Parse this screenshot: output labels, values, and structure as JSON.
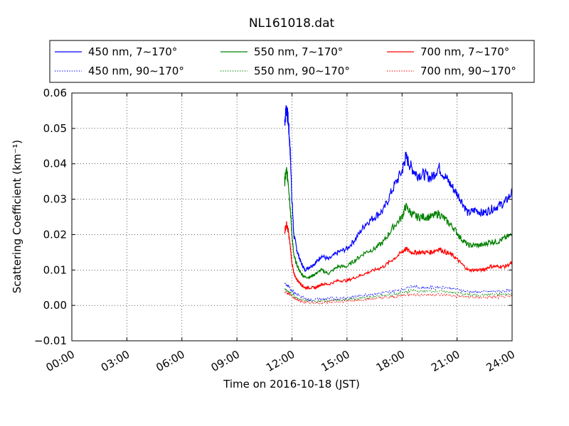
{
  "chart_data": {
    "type": "line",
    "title": "NL161018.dat",
    "xlabel": "Time on 2016-10-18 (JST)",
    "ylabel": "Scattering Coefficient (km⁻¹)",
    "xlim": [
      0,
      24
    ],
    "ylim": [
      -0.01,
      0.06
    ],
    "x_ticks": [
      0,
      3,
      6,
      9,
      12,
      15,
      18,
      21,
      24
    ],
    "x_tick_labels": [
      "00:00",
      "03:00",
      "06:00",
      "09:00",
      "12:00",
      "15:00",
      "18:00",
      "21:00",
      "24:00"
    ],
    "y_ticks": [
      -0.01,
      0.0,
      0.01,
      0.02,
      0.03,
      0.04,
      0.05,
      0.06
    ],
    "y_tick_labels": [
      "−0.01",
      "0.00",
      "0.01",
      "0.02",
      "0.03",
      "0.04",
      "0.05",
      "0.06"
    ],
    "grid": true,
    "legend_position": "top",
    "series": [
      {
        "name": "450 nm, 7∼170°",
        "color": "#0000ff",
        "style": "solid",
        "x": [
          11.6,
          11.7,
          11.8,
          11.9,
          12.0,
          12.1,
          12.3,
          12.5,
          12.7,
          13.0,
          13.3,
          13.6,
          14.0,
          14.5,
          15.0,
          15.5,
          16.0,
          16.5,
          17.0,
          17.5,
          18.0,
          18.2,
          18.5,
          18.8,
          19.2,
          19.6,
          20.0,
          20.4,
          20.8,
          21.2,
          21.6,
          22.0,
          22.4,
          22.8,
          23.2,
          23.6,
          24.0
        ],
        "y": [
          0.052,
          0.056,
          0.052,
          0.044,
          0.03,
          0.02,
          0.015,
          0.012,
          0.01,
          0.011,
          0.012,
          0.014,
          0.013,
          0.015,
          0.016,
          0.019,
          0.023,
          0.025,
          0.027,
          0.033,
          0.038,
          0.042,
          0.039,
          0.037,
          0.037,
          0.036,
          0.039,
          0.036,
          0.033,
          0.03,
          0.026,
          0.027,
          0.026,
          0.027,
          0.028,
          0.029,
          0.032
        ]
      },
      {
        "name": "550 nm, 7∼170°",
        "color": "#008000",
        "style": "solid",
        "x": [
          11.6,
          11.7,
          11.8,
          11.9,
          12.0,
          12.1,
          12.3,
          12.5,
          12.7,
          13.0,
          13.3,
          13.6,
          14.0,
          14.5,
          15.0,
          15.5,
          16.0,
          16.5,
          17.0,
          17.5,
          18.0,
          18.2,
          18.5,
          18.8,
          19.2,
          19.6,
          20.0,
          20.4,
          20.8,
          21.2,
          21.6,
          22.0,
          22.4,
          22.8,
          23.2,
          23.6,
          24.0
        ],
        "y": [
          0.035,
          0.038,
          0.035,
          0.028,
          0.02,
          0.014,
          0.011,
          0.009,
          0.008,
          0.008,
          0.009,
          0.01,
          0.009,
          0.011,
          0.011,
          0.013,
          0.015,
          0.016,
          0.018,
          0.022,
          0.025,
          0.028,
          0.026,
          0.025,
          0.025,
          0.025,
          0.026,
          0.024,
          0.022,
          0.019,
          0.017,
          0.017,
          0.017,
          0.018,
          0.018,
          0.019,
          0.02
        ]
      },
      {
        "name": "700 nm, 7∼170°",
        "color": "#ff0000",
        "style": "solid",
        "x": [
          11.6,
          11.7,
          11.8,
          11.9,
          12.0,
          12.1,
          12.3,
          12.5,
          12.7,
          13.0,
          13.3,
          13.6,
          14.0,
          14.5,
          15.0,
          15.5,
          16.0,
          16.5,
          17.0,
          17.5,
          18.0,
          18.2,
          18.5,
          18.8,
          19.2,
          19.6,
          20.0,
          20.4,
          20.8,
          21.2,
          21.6,
          22.0,
          22.4,
          22.8,
          23.2,
          23.6,
          24.0
        ],
        "y": [
          0.021,
          0.023,
          0.021,
          0.017,
          0.012,
          0.009,
          0.007,
          0.006,
          0.005,
          0.005,
          0.005,
          0.006,
          0.006,
          0.007,
          0.007,
          0.008,
          0.009,
          0.01,
          0.011,
          0.013,
          0.015,
          0.016,
          0.015,
          0.015,
          0.015,
          0.015,
          0.016,
          0.015,
          0.014,
          0.012,
          0.01,
          0.01,
          0.01,
          0.011,
          0.011,
          0.011,
          0.012
        ]
      },
      {
        "name": "450 nm, 90∼170°",
        "color": "#0000ff",
        "style": "dotted",
        "x": [
          11.6,
          11.8,
          12.0,
          12.3,
          12.7,
          13.0,
          13.5,
          14.0,
          14.5,
          15.0,
          15.5,
          16.0,
          16.5,
          17.0,
          17.5,
          18.0,
          18.5,
          19.0,
          19.5,
          20.0,
          20.5,
          21.0,
          21.5,
          22.0,
          22.5,
          23.0,
          23.5,
          24.0
        ],
        "y": [
          0.006,
          0.0055,
          0.004,
          0.003,
          0.002,
          0.0015,
          0.0018,
          0.002,
          0.002,
          0.0022,
          0.0026,
          0.003,
          0.0032,
          0.0036,
          0.004,
          0.0045,
          0.0055,
          0.005,
          0.005,
          0.0052,
          0.005,
          0.0045,
          0.004,
          0.0038,
          0.0038,
          0.004,
          0.004,
          0.0042
        ]
      },
      {
        "name": "550 nm, 90∼170°",
        "color": "#008000",
        "style": "dotted",
        "x": [
          11.6,
          11.8,
          12.0,
          12.3,
          12.7,
          13.0,
          13.5,
          14.0,
          14.5,
          15.0,
          15.5,
          16.0,
          16.5,
          17.0,
          17.5,
          18.0,
          18.5,
          19.0,
          19.5,
          20.0,
          20.5,
          21.0,
          21.5,
          22.0,
          22.5,
          23.0,
          23.5,
          24.0
        ],
        "y": [
          0.0045,
          0.004,
          0.003,
          0.002,
          0.0015,
          0.0012,
          0.0012,
          0.0014,
          0.0015,
          0.0016,
          0.0019,
          0.0022,
          0.0024,
          0.0027,
          0.003,
          0.0035,
          0.0042,
          0.004,
          0.004,
          0.0041,
          0.0038,
          0.0034,
          0.0031,
          0.0029,
          0.003,
          0.0031,
          0.0031,
          0.0033
        ]
      },
      {
        "name": "700 nm, 90∼170°",
        "color": "#ff0000",
        "style": "dotted",
        "x": [
          11.6,
          11.8,
          12.0,
          12.3,
          12.7,
          13.0,
          13.5,
          14.0,
          14.5,
          15.0,
          15.5,
          16.0,
          16.5,
          17.0,
          17.5,
          18.0,
          18.5,
          19.0,
          19.5,
          20.0,
          20.5,
          21.0,
          21.5,
          22.0,
          22.5,
          23.0,
          23.5,
          24.0
        ],
        "y": [
          0.004,
          0.0035,
          0.0025,
          0.0015,
          0.001,
          0.0008,
          0.0008,
          0.001,
          0.0011,
          0.0012,
          0.0014,
          0.0017,
          0.0019,
          0.0021,
          0.0024,
          0.0028,
          0.0032,
          0.003,
          0.003,
          0.0031,
          0.0029,
          0.0026,
          0.0024,
          0.0022,
          0.0023,
          0.0024,
          0.0024,
          0.0025
        ]
      }
    ]
  }
}
